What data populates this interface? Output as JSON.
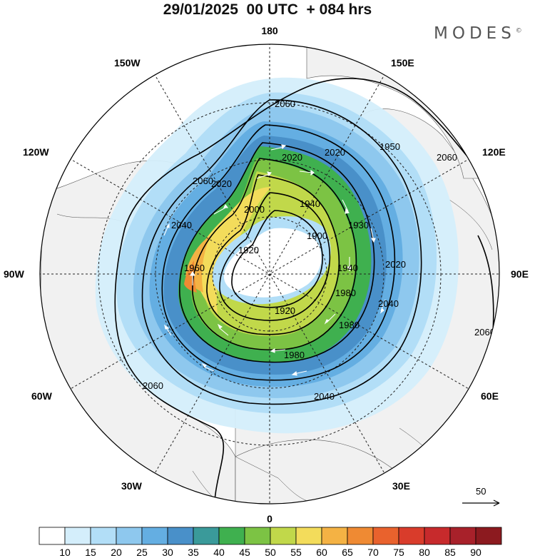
{
  "title": "29/01/2025  00 UTC  + 084 hrs",
  "brand": "MODES",
  "brand_mark": "©",
  "meridian_labels": {
    "top": "180",
    "bottom": "0",
    "left": "90W",
    "right": "90E",
    "nw1": "150W",
    "ne1": "150E",
    "nw2": "120W",
    "ne2": "120E",
    "sw1": "60W",
    "se1": "60E",
    "sw2": "30W",
    "se2": "30E"
  },
  "contour_labels": [
    "2060",
    "2060",
    "2060",
    "2040",
    "2020",
    "2000",
    "1960",
    "1920",
    "1940",
    "1900",
    "1920",
    "1980",
    "2020",
    "2040",
    "2060",
    "2060",
    "2040",
    "1980",
    "1930",
    "2020",
    "1950",
    "1980",
    "1940",
    "2020"
  ],
  "wind_reference": "50",
  "colorbar": {
    "ticks": [
      "10",
      "15",
      "20",
      "25",
      "30",
      "35",
      "40",
      "45",
      "50",
      "55",
      "60",
      "65",
      "70",
      "75",
      "80",
      "85",
      "90"
    ],
    "colors": [
      "#ffffff",
      "#d4eefb",
      "#b2def7",
      "#8ec8ee",
      "#64aee2",
      "#4990c9",
      "#3a9a9a",
      "#3fb04f",
      "#7cc344",
      "#c1d84a",
      "#f3dc5b",
      "#f4b244",
      "#ef8a33",
      "#e9622d",
      "#d93c2b",
      "#c72a2c",
      "#a8212a",
      "#8c1a1f"
    ]
  }
}
